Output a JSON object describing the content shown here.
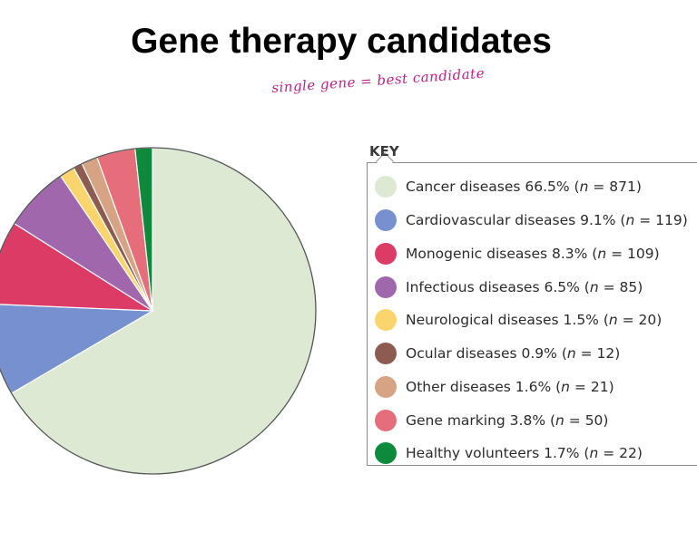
{
  "title": "Gene therapy candidates",
  "handwritten_note": "single gene = best candidate",
  "key": {
    "heading": "KEY"
  },
  "chart_data": {
    "type": "pie",
    "legend_position": "right",
    "slices": [
      {
        "label": "Cancer diseases",
        "percent": 66.5,
        "n": 871,
        "color": "#dde9d3",
        "text_pct": "66.5%",
        "text_n": "871"
      },
      {
        "label": "Cardiovascular diseases",
        "percent": 9.1,
        "n": 119,
        "color": "#7690d0",
        "text_pct": "9.1%",
        "text_n": "119"
      },
      {
        "label": "Monogenic diseases",
        "percent": 8.3,
        "n": 109,
        "color": "#dc3b66",
        "text_pct": "8.3%",
        "text_n": "109"
      },
      {
        "label": "Infectious diseases",
        "percent": 6.5,
        "n": 85,
        "color": "#a067ac",
        "text_pct": "6.5%",
        "text_n": "85"
      },
      {
        "label": "Neurological diseases",
        "percent": 1.5,
        "n": 20,
        "color": "#fad46c",
        "text_pct": "1.5%",
        "text_n": "20"
      },
      {
        "label": "Ocular diseases",
        "percent": 0.9,
        "n": 12,
        "color": "#8d5b4f",
        "text_pct": "0.9%",
        "text_n": "12"
      },
      {
        "label": "Other diseases",
        "percent": 1.6,
        "n": 21,
        "color": "#d6a484",
        "text_pct": "1.6%",
        "text_n": "21"
      },
      {
        "label": "Gene marking",
        "percent": 3.8,
        "n": 50,
        "color": "#e56e7a",
        "text_pct": "3.8%",
        "text_n": "50"
      },
      {
        "label": "Healthy volunteers",
        "percent": 1.7,
        "n": 22,
        "color": "#0d8a3c",
        "text_pct": "1.7%",
        "text_n": "22"
      }
    ]
  }
}
